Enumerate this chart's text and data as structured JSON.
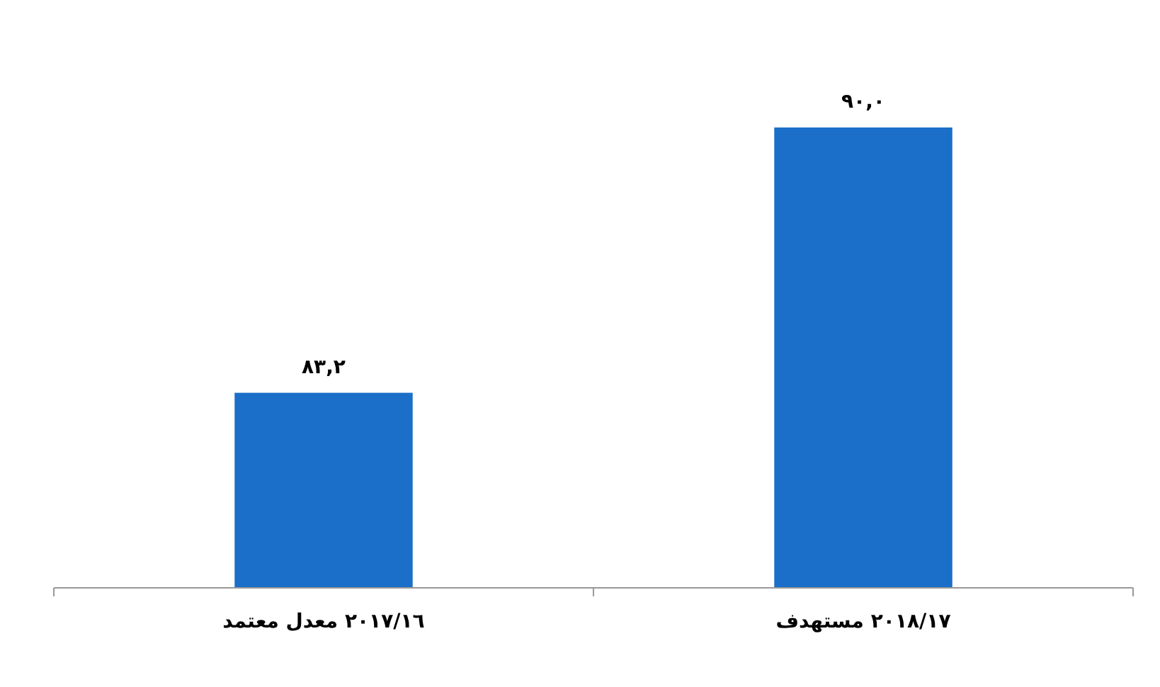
{
  "chart_data": {
    "type": "bar",
    "categories": [
      "٢٠١٧/١٦ معدل معتمد",
      "٢٠١٨/١٧ مستهدف"
    ],
    "values": [
      83.2,
      90.0
    ],
    "color": "#1b6fc8",
    "value_labels": [
      "٨٣,٢",
      "٩٠,٠"
    ],
    "ylim": [
      78.2,
      90
    ],
    "tick_labels": "x"
  }
}
